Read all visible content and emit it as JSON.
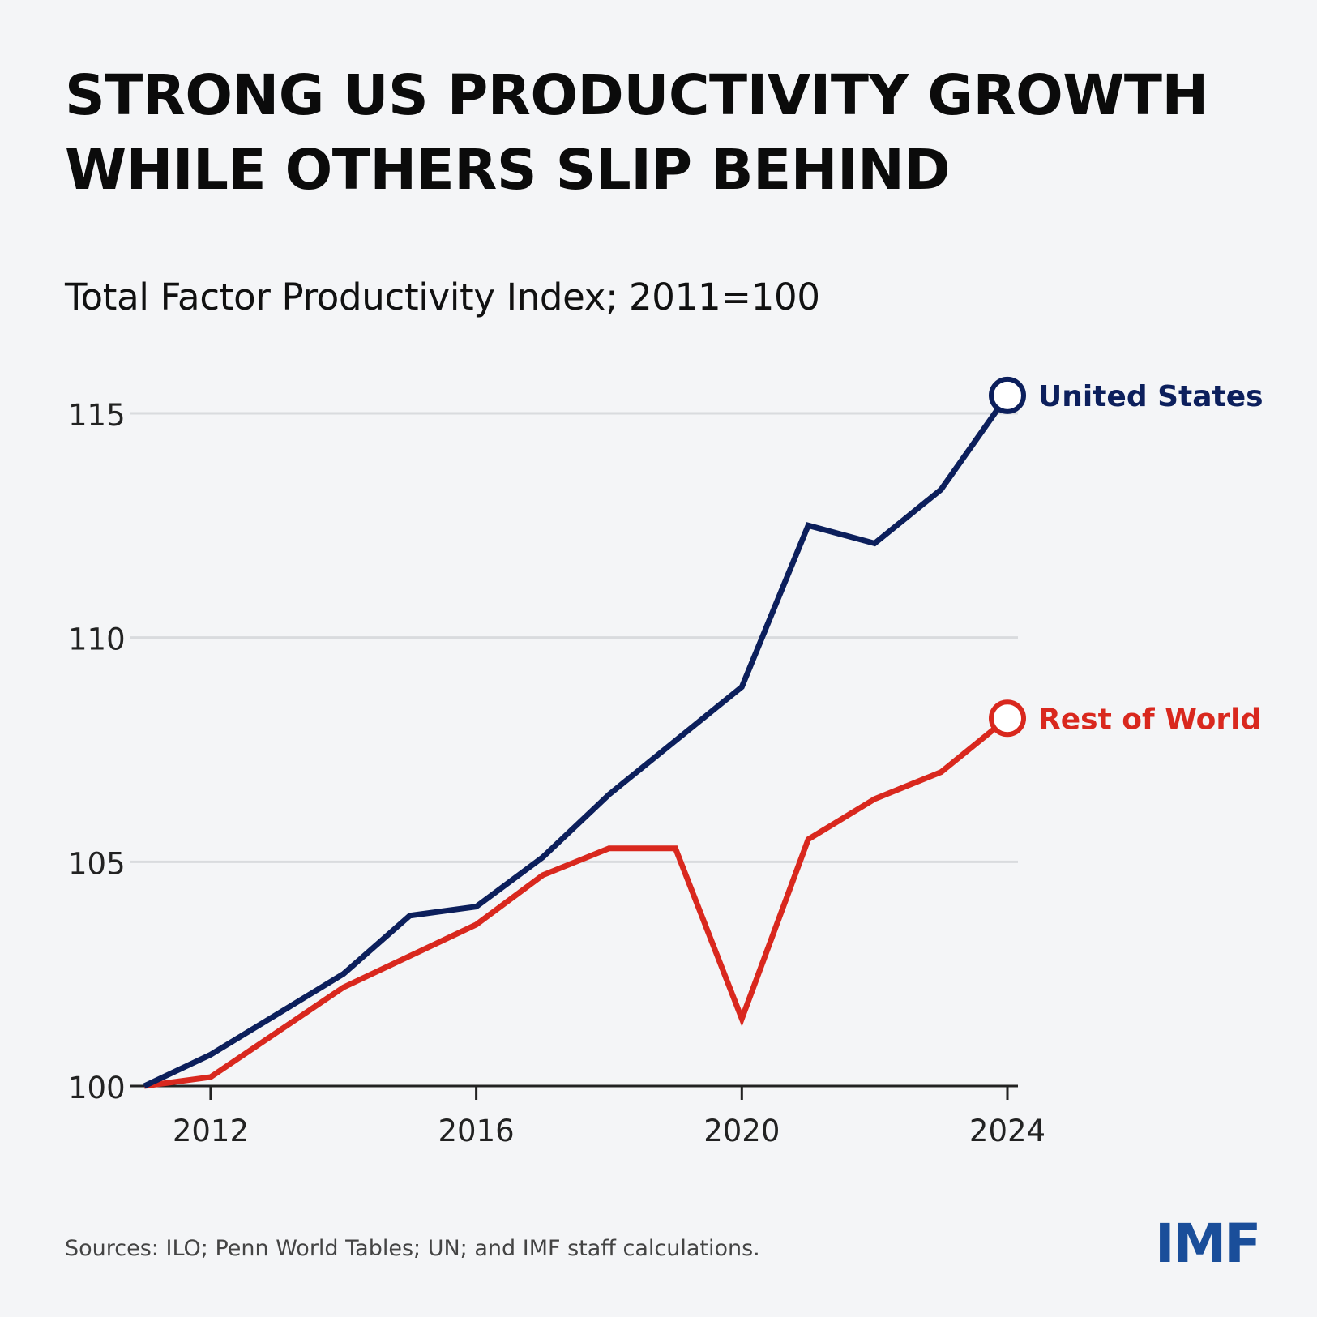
{
  "title": {
    "line1": "STRONG US PRODUCTIVITY GROWTH",
    "line2": "WHILE OTHERS SLIP BEHIND"
  },
  "subtitle": "Total Factor Productivity Index; 2011=100",
  "source": "Sources: ILO; Penn World Tables; UN; and IMF staff calculations.",
  "logo_text": "IMF",
  "colors": {
    "united_states": "#0c1f5c",
    "rest_of_world": "#d9281e",
    "grid": "#d9dbde",
    "axis": "#222222",
    "background": "#f4f5f7"
  },
  "chart_data": {
    "type": "line",
    "title": "STRONG US PRODUCTIVITY GROWTH WHILE OTHERS SLIP BEHIND",
    "subtitle": "Total Factor Productivity Index; 2011=100",
    "xlabel": "",
    "ylabel": "",
    "x": [
      2011,
      2012,
      2013,
      2014,
      2015,
      2016,
      2017,
      2018,
      2019,
      2020,
      2021,
      2022,
      2023,
      2024
    ],
    "xlim": [
      2011,
      2024
    ],
    "ylim": [
      100,
      115
    ],
    "xticks": [
      "2012",
      "2016",
      "2020",
      "2024"
    ],
    "yticks": [
      "100",
      "105",
      "110",
      "115"
    ],
    "grid": true,
    "legend": "inline labels at line ends",
    "series": [
      {
        "name": "United States",
        "color": "#0c1f5c",
        "values": [
          100.0,
          100.7,
          101.6,
          102.5,
          103.8,
          104.0,
          105.1,
          106.5,
          107.7,
          108.9,
          112.5,
          112.1,
          113.3,
          115.4
        ]
      },
      {
        "name": "Rest of World",
        "color": "#d9281e",
        "values": [
          100.0,
          100.2,
          101.2,
          102.2,
          102.9,
          103.6,
          104.7,
          105.3,
          105.3,
          101.5,
          105.5,
          106.4,
          107.0,
          108.2
        ]
      }
    ]
  }
}
